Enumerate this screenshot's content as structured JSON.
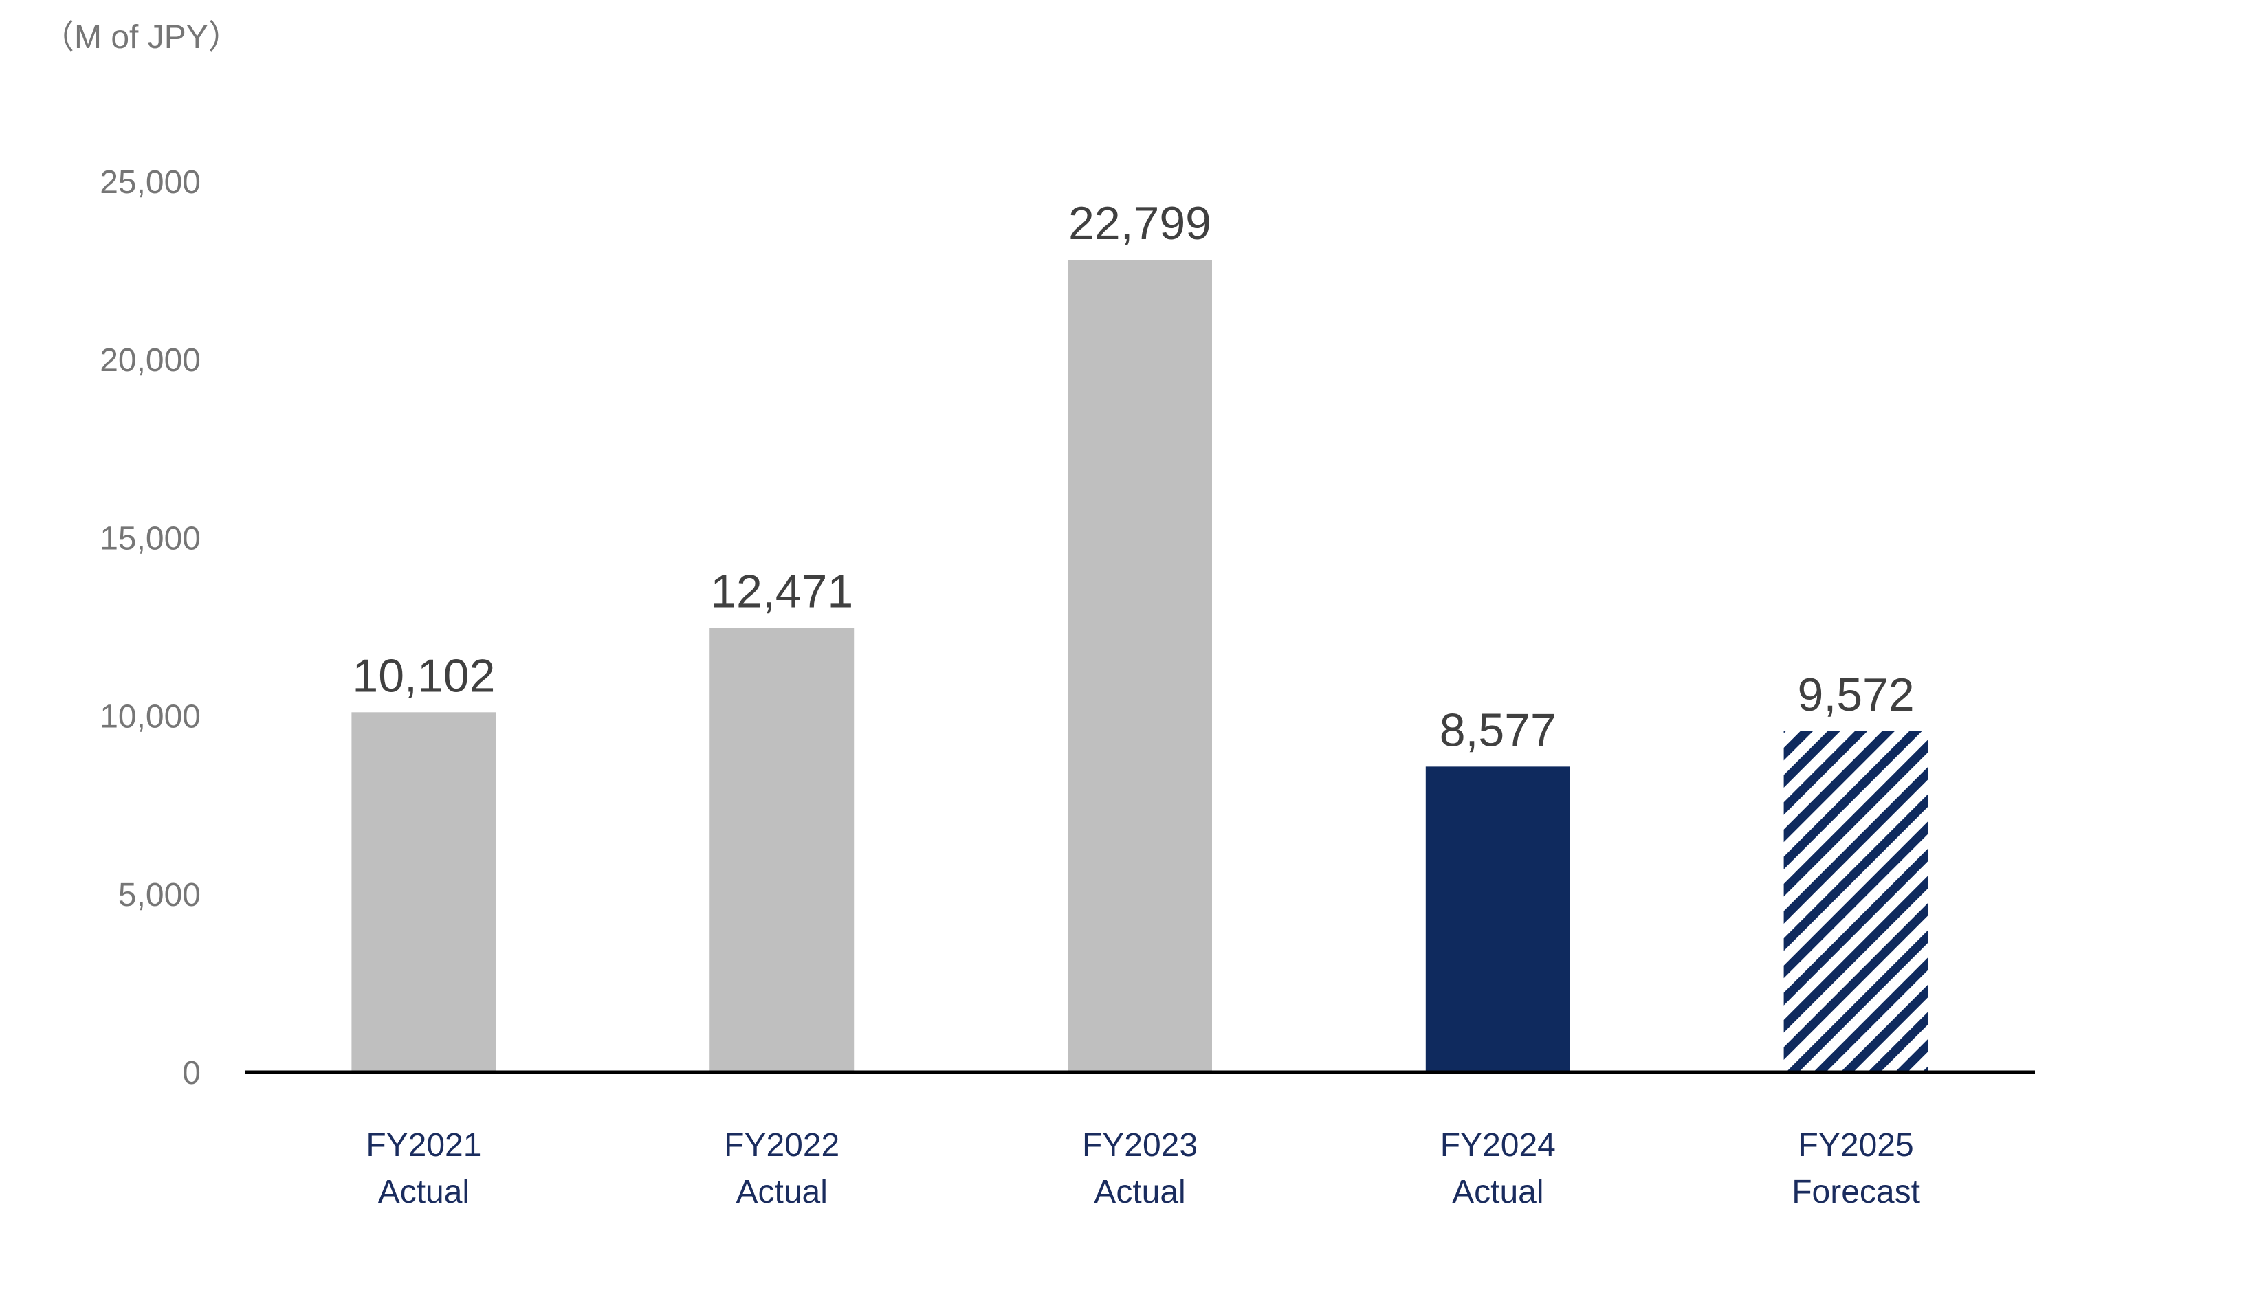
{
  "chart_data": {
    "type": "bar",
    "unit_label": "（M of JPY）",
    "categories": [
      [
        "FY2021",
        "Actual"
      ],
      [
        "FY2022",
        "Actual"
      ],
      [
        "FY2023",
        "Actual"
      ],
      [
        "FY2024",
        "Actual"
      ],
      [
        "FY2025",
        "Forecast"
      ]
    ],
    "values": [
      10102,
      12471,
      22799,
      8577,
      9572
    ],
    "value_labels": [
      "10,102",
      "12,471",
      "22,799",
      "8,577",
      "9,572"
    ],
    "bar_styles": [
      "solid",
      "solid",
      "solid",
      "solid",
      "hatched"
    ],
    "bar_colors": [
      "#bfbfbf",
      "#bfbfbf",
      "#bfbfbf",
      "#0f2a5e",
      "#0f2a5e"
    ],
    "ylim": [
      0,
      25000
    ],
    "yticks": [
      0,
      5000,
      10000,
      15000,
      20000,
      25000
    ],
    "ytick_labels": [
      "0",
      "5,000",
      "10,000",
      "15,000",
      "20,000",
      "25,000"
    ],
    "grid": false,
    "legend": "none",
    "colors": {
      "axis": "#000000",
      "ytick_text": "#767676",
      "xtick_text": "#1a2c5e",
      "value_text": "#404040"
    }
  }
}
